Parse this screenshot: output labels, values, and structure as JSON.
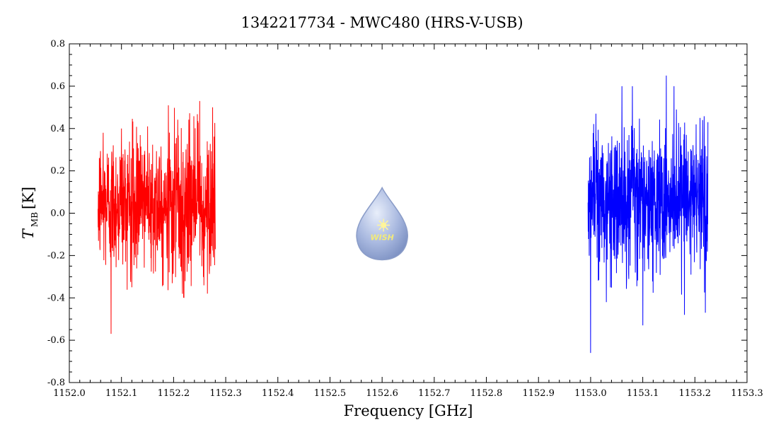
{
  "chart_data": {
    "type": "line",
    "title": "1342217734 - MWC480 (HRS-V-USB)",
    "xlabel": "Frequency [GHz]",
    "ylabel": {
      "main": "T",
      "sub": "MB",
      "unit": "[K]"
    },
    "xlim": [
      1152.0,
      1153.3
    ],
    "ylim": [
      -0.8,
      0.8
    ],
    "xticks": [
      "1152.0",
      "1152.1",
      "1152.2",
      "1152.3",
      "1152.4",
      "1152.5",
      "1152.6",
      "1152.7",
      "1152.8",
      "1152.9",
      "1153.0",
      "1153.1",
      "1153.2",
      "1153.3"
    ],
    "yticks": [
      "-0.8",
      "-0.6",
      "-0.4",
      "-0.2",
      "0.0",
      "0.2",
      "0.4",
      "0.6",
      "0.8"
    ],
    "grid": false,
    "logo": {
      "text": "WISH",
      "position": "center"
    },
    "series": [
      {
        "color": "#ff0000",
        "x_range": [
          1152.055,
          1152.28
        ],
        "description": "noise-dominated spectrum, mean ~0.05 K",
        "samples": [
          {
            "x": 1152.055,
            "y": 0.02
          },
          {
            "x": 1152.065,
            "y": 0.38
          },
          {
            "x": 1152.08,
            "y": -0.57
          },
          {
            "x": 1152.1,
            "y": 0.4
          },
          {
            "x": 1152.12,
            "y": -0.35
          },
          {
            "x": 1152.15,
            "y": 0.41
          },
          {
            "x": 1152.18,
            "y": -0.34
          },
          {
            "x": 1152.19,
            "y": 0.51
          },
          {
            "x": 1152.22,
            "y": -0.4
          },
          {
            "x": 1152.25,
            "y": 0.53
          },
          {
            "x": 1152.265,
            "y": -0.38
          },
          {
            "x": 1152.275,
            "y": 0.5
          },
          {
            "x": 1152.28,
            "y": -0.17
          }
        ]
      },
      {
        "color": "#0000ff",
        "x_range": [
          1152.995,
          1153.225
        ],
        "description": "noise-dominated spectrum, mean ~0.05 K",
        "samples": [
          {
            "x": 1152.995,
            "y": 0.05
          },
          {
            "x": 1153.0,
            "y": -0.66
          },
          {
            "x": 1153.01,
            "y": 0.47
          },
          {
            "x": 1153.03,
            "y": -0.42
          },
          {
            "x": 1153.06,
            "y": 0.6
          },
          {
            "x": 1153.08,
            "y": 0.6
          },
          {
            "x": 1153.1,
            "y": -0.53
          },
          {
            "x": 1153.145,
            "y": 0.65
          },
          {
            "x": 1153.16,
            "y": 0.6
          },
          {
            "x": 1153.18,
            "y": -0.48
          },
          {
            "x": 1153.21,
            "y": 0.45
          },
          {
            "x": 1153.22,
            "y": -0.47
          },
          {
            "x": 1153.225,
            "y": 0.43
          }
        ]
      }
    ]
  }
}
